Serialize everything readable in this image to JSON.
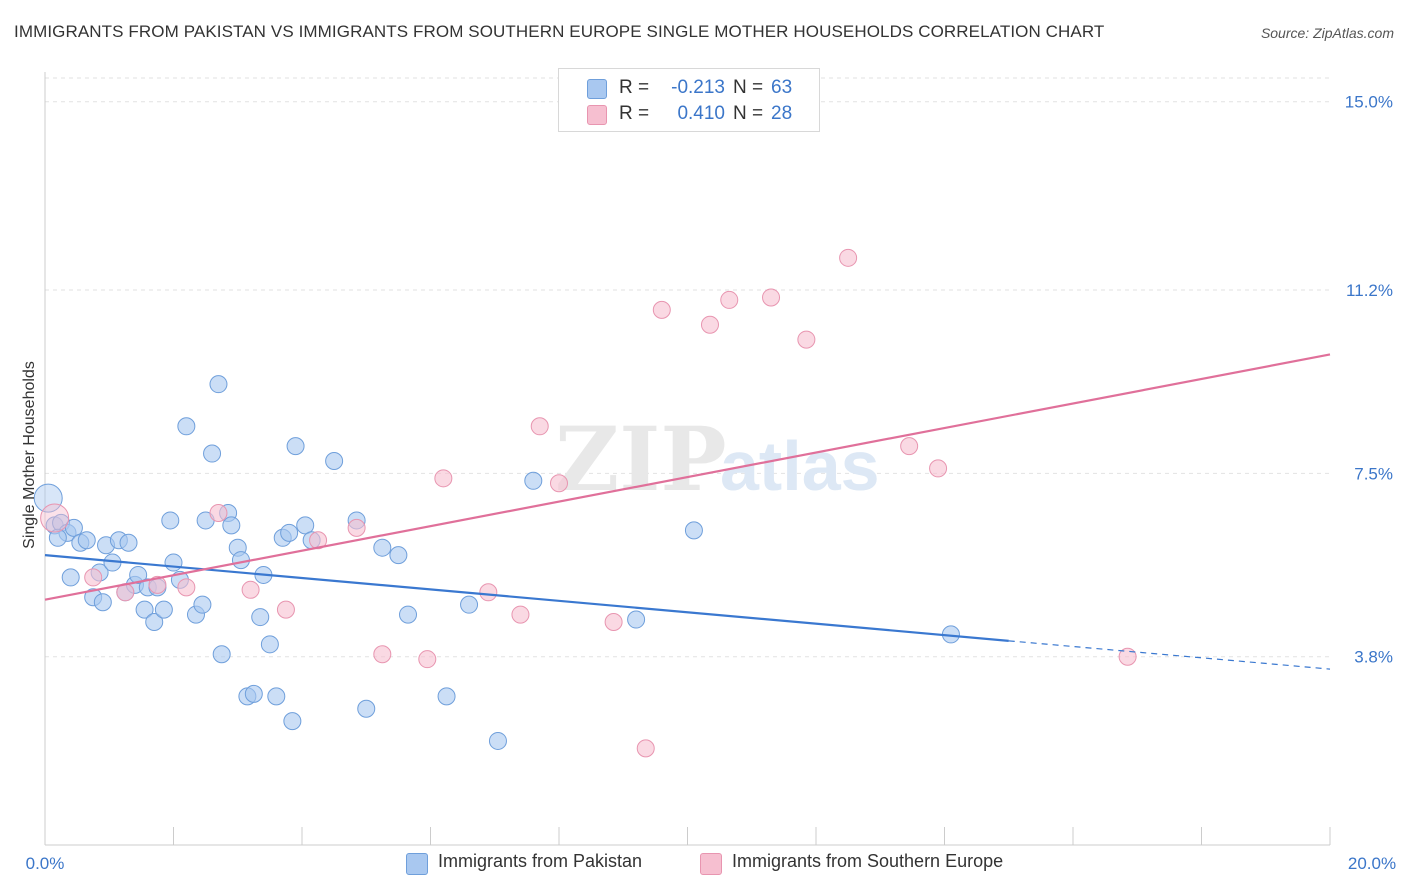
{
  "header": {
    "title": "IMMIGRANTS FROM PAKISTAN VS IMMIGRANTS FROM SOUTHERN EUROPE SINGLE MOTHER HOUSEHOLDS CORRELATION CHART",
    "source": "Source: ZipAtlas.com"
  },
  "legend": {
    "series1": {
      "r_label": "R =",
      "r_value": "-0.213",
      "n_label": "N =",
      "n_value": "63"
    },
    "series2": {
      "r_label": "R =",
      "r_value": "0.410",
      "n_label": "N =",
      "n_value": "28"
    }
  },
  "colors": {
    "blue_fill": "#a9c8f0",
    "blue_stroke": "#6f9fdb",
    "blue_line": "#3a78d0",
    "pink_fill": "#f6bfd0",
    "pink_stroke": "#e895b0",
    "pink_line": "#e0709a",
    "axis_text": "#3b76c9",
    "grid": "#e2e2e2"
  },
  "watermark": {
    "zip": "ZIP",
    "atlas": "atlas"
  },
  "chart_data": {
    "type": "scatter",
    "title": "IMMIGRANTS FROM PAKISTAN VS IMMIGRANTS FROM SOUTHERN EUROPE SINGLE MOTHER HOUSEHOLDS CORRELATION CHART",
    "xlabel": "",
    "ylabel": "Single Mother Households",
    "xlim": [
      0,
      20
    ],
    "ylim": [
      0,
      15.6
    ],
    "x_tick_labels": [
      "0.0%",
      "20.0%"
    ],
    "y_ticks": [
      3.8,
      7.5,
      11.2,
      15.0
    ],
    "y_tick_labels": [
      "3.8%",
      "7.5%",
      "11.2%",
      "15.0%"
    ],
    "grid": true,
    "series": [
      {
        "name": "Immigrants from Pakistan",
        "color": "#a9c8f0",
        "trend": {
          "x": [
            0,
            15.0
          ],
          "y": [
            5.85,
            4.12
          ],
          "dashed_to": [
            20,
            3.55
          ]
        },
        "points": [
          [
            0.05,
            7.0
          ],
          [
            0.15,
            6.45
          ],
          [
            0.25,
            6.5
          ],
          [
            0.35,
            6.3
          ],
          [
            0.45,
            6.4
          ],
          [
            0.4,
            5.4
          ],
          [
            0.55,
            6.1
          ],
          [
            0.65,
            6.15
          ],
          [
            0.75,
            5.0
          ],
          [
            0.85,
            5.5
          ],
          [
            0.9,
            4.9
          ],
          [
            0.95,
            6.05
          ],
          [
            1.05,
            5.7
          ],
          [
            1.15,
            6.15
          ],
          [
            1.25,
            5.1
          ],
          [
            1.3,
            6.1
          ],
          [
            1.4,
            5.25
          ],
          [
            1.45,
            5.45
          ],
          [
            1.55,
            4.75
          ],
          [
            1.6,
            5.2
          ],
          [
            1.7,
            4.5
          ],
          [
            1.75,
            5.2
          ],
          [
            1.85,
            4.75
          ],
          [
            1.95,
            6.55
          ],
          [
            2.0,
            5.7
          ],
          [
            2.1,
            5.35
          ],
          [
            2.2,
            8.45
          ],
          [
            2.35,
            4.65
          ],
          [
            2.45,
            4.85
          ],
          [
            2.5,
            6.55
          ],
          [
            2.6,
            7.9
          ],
          [
            2.7,
            9.3
          ],
          [
            2.75,
            3.85
          ],
          [
            2.85,
            6.7
          ],
          [
            2.9,
            6.45
          ],
          [
            3.0,
            6.0
          ],
          [
            3.05,
            5.75
          ],
          [
            3.15,
            3.0
          ],
          [
            3.25,
            3.05
          ],
          [
            3.35,
            4.6
          ],
          [
            3.4,
            5.45
          ],
          [
            3.5,
            4.05
          ],
          [
            3.6,
            3.0
          ],
          [
            3.7,
            6.2
          ],
          [
            3.8,
            6.3
          ],
          [
            3.85,
            2.5
          ],
          [
            3.9,
            8.05
          ],
          [
            4.05,
            6.45
          ],
          [
            4.15,
            6.15
          ],
          [
            4.5,
            7.75
          ],
          [
            4.85,
            6.55
          ],
          [
            5.0,
            2.75
          ],
          [
            5.25,
            6.0
          ],
          [
            5.5,
            5.85
          ],
          [
            5.65,
            4.65
          ],
          [
            6.25,
            3.0
          ],
          [
            6.6,
            4.85
          ],
          [
            7.05,
            2.1
          ],
          [
            7.6,
            7.35
          ],
          [
            9.2,
            4.55
          ],
          [
            10.1,
            6.35
          ],
          [
            14.1,
            4.25
          ],
          [
            0.2,
            6.2
          ]
        ]
      },
      {
        "name": "Immigrants from Southern Europe",
        "color": "#f6bfd0",
        "trend": {
          "x": [
            0,
            20
          ],
          "y": [
            4.95,
            9.9
          ]
        },
        "points": [
          [
            0.15,
            6.6
          ],
          [
            0.75,
            5.4
          ],
          [
            1.25,
            5.1
          ],
          [
            1.75,
            5.25
          ],
          [
            2.2,
            5.2
          ],
          [
            2.7,
            6.7
          ],
          [
            3.2,
            5.15
          ],
          [
            3.75,
            4.75
          ],
          [
            4.25,
            6.15
          ],
          [
            4.85,
            6.4
          ],
          [
            5.25,
            3.85
          ],
          [
            5.95,
            3.75
          ],
          [
            6.2,
            7.4
          ],
          [
            6.9,
            5.1
          ],
          [
            7.4,
            4.65
          ],
          [
            7.7,
            8.45
          ],
          [
            8.0,
            7.3
          ],
          [
            8.85,
            4.5
          ],
          [
            9.35,
            1.95
          ],
          [
            9.6,
            10.8
          ],
          [
            10.35,
            10.5
          ],
          [
            10.65,
            11.0
          ],
          [
            11.3,
            11.05
          ],
          [
            11.85,
            10.2
          ],
          [
            12.5,
            11.85
          ],
          [
            13.45,
            8.05
          ],
          [
            13.9,
            7.6
          ],
          [
            16.85,
            3.8
          ]
        ]
      }
    ]
  },
  "bottom_legend": {
    "item1": "Immigrants from Pakistan",
    "item2": "Immigrants from Southern Europe"
  }
}
